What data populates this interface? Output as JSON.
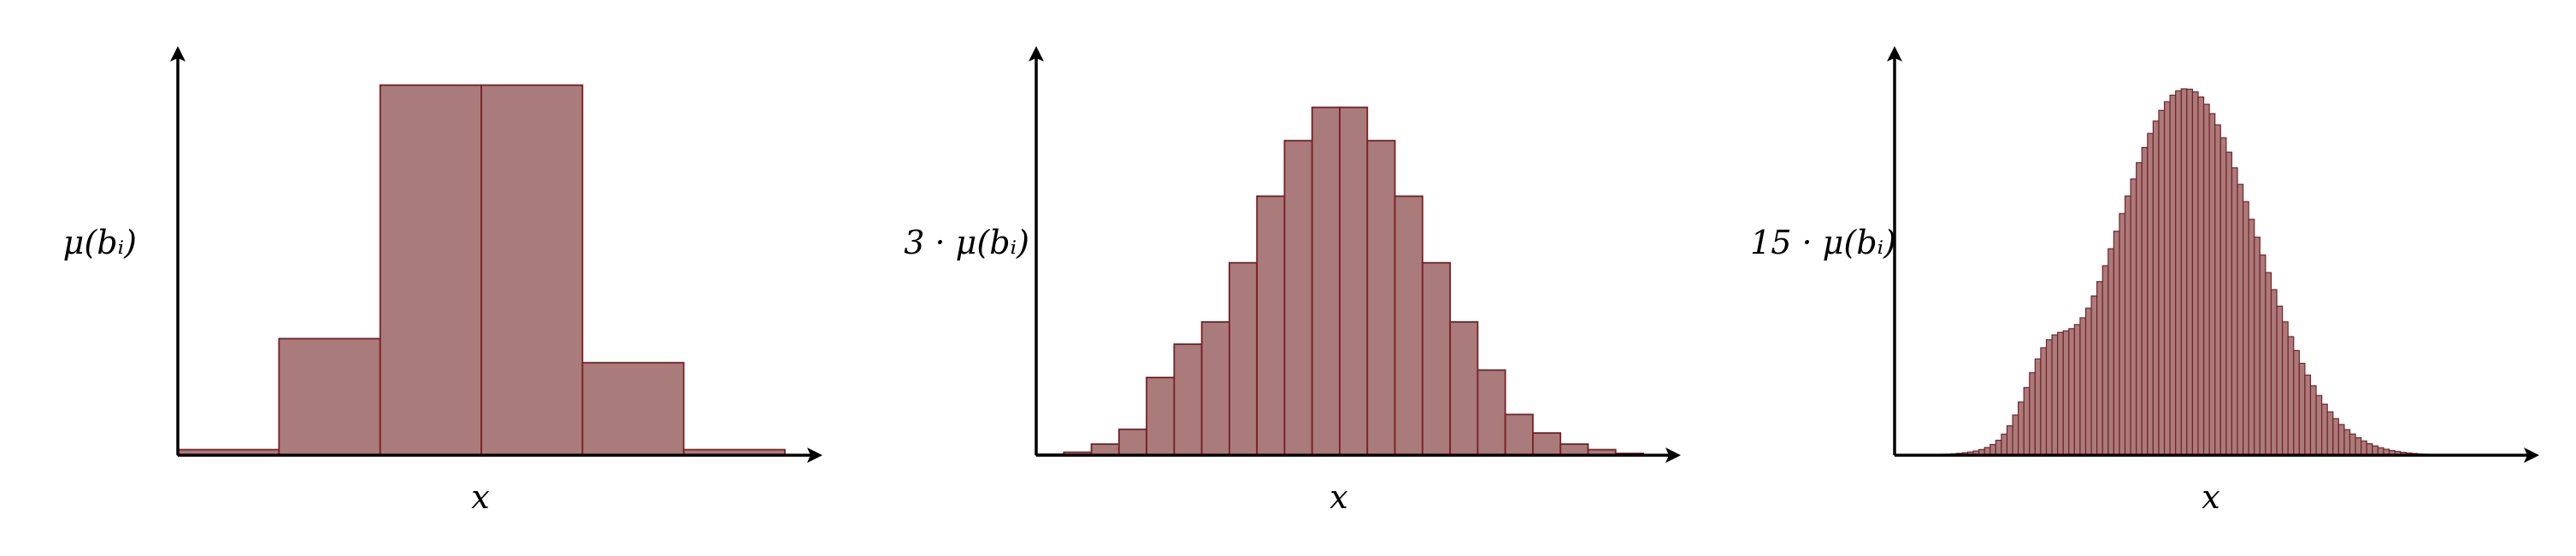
{
  "colors": {
    "bar_fill": "#a97b7a",
    "bar_stroke": "#7a1f26",
    "axis": "#000000"
  },
  "chart_data": [
    {
      "type": "bar",
      "ylabel": "μ(bᵢ)",
      "xlabel": "x",
      "bins": 6,
      "values": [
        0.015,
        0.315,
        1.0,
        1.0,
        0.25,
        0.015
      ],
      "ylim": [
        0,
        1.05
      ]
    },
    {
      "type": "bar",
      "ylabel": "3 · μ(bᵢ)",
      "xlabel": "x",
      "bins": 22,
      "values": [
        0.003,
        0.008,
        0.03,
        0.07,
        0.21,
        0.3,
        0.36,
        0.52,
        0.7,
        0.85,
        0.94,
        0.94,
        0.85,
        0.7,
        0.52,
        0.36,
        0.23,
        0.11,
        0.06,
        0.03,
        0.015,
        0.005
      ],
      "ylim": [
        0,
        1.05
      ]
    },
    {
      "type": "bar",
      "ylabel": "15 · μ(bᵢ)",
      "xlabel": "x",
      "bins": 108,
      "mixture": {
        "components": [
          {
            "weight": 1.0,
            "center": 0.48,
            "width": 0.115
          },
          {
            "weight": 0.17,
            "center": 0.25,
            "width": 0.035
          }
        ]
      },
      "ylim": [
        0,
        1.05
      ]
    }
  ]
}
